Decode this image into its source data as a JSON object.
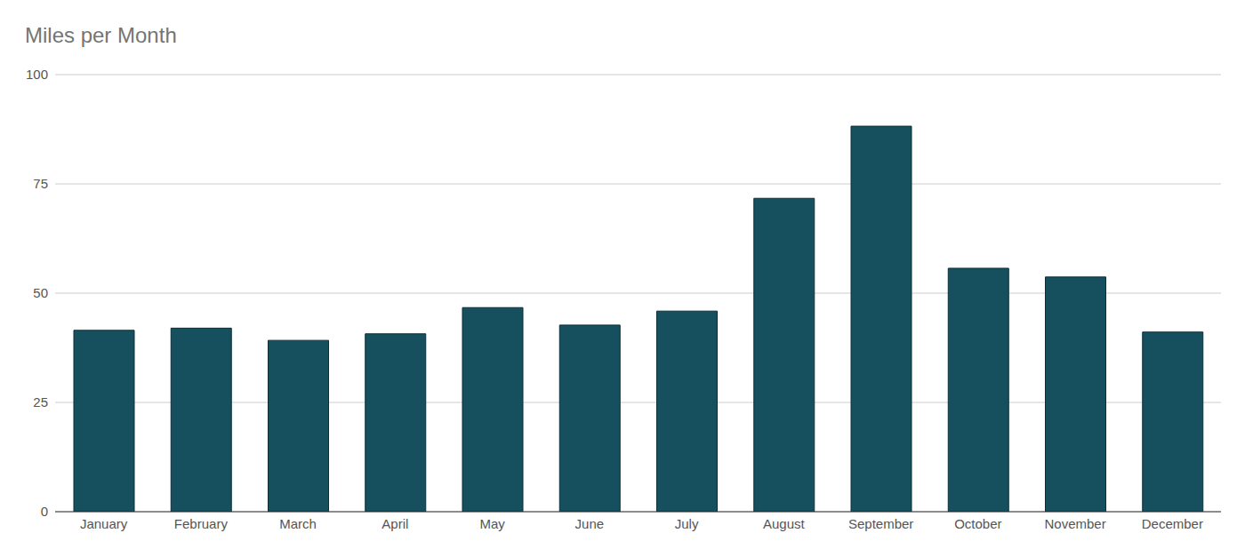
{
  "chart_data": {
    "type": "bar",
    "title": "Miles per Month",
    "categories": [
      "January",
      "February",
      "March",
      "April",
      "May",
      "June",
      "July",
      "August",
      "September",
      "October",
      "November",
      "December"
    ],
    "values": [
      41.5,
      42,
      39.2,
      40.7,
      46.7,
      42.7,
      45.9,
      71.7,
      88.2,
      55.7,
      53.7,
      41.1
    ],
    "color": "#164f5e",
    "ylim": [
      0,
      100
    ],
    "yticks": [
      0,
      25,
      50,
      75,
      100
    ],
    "grid": true
  }
}
